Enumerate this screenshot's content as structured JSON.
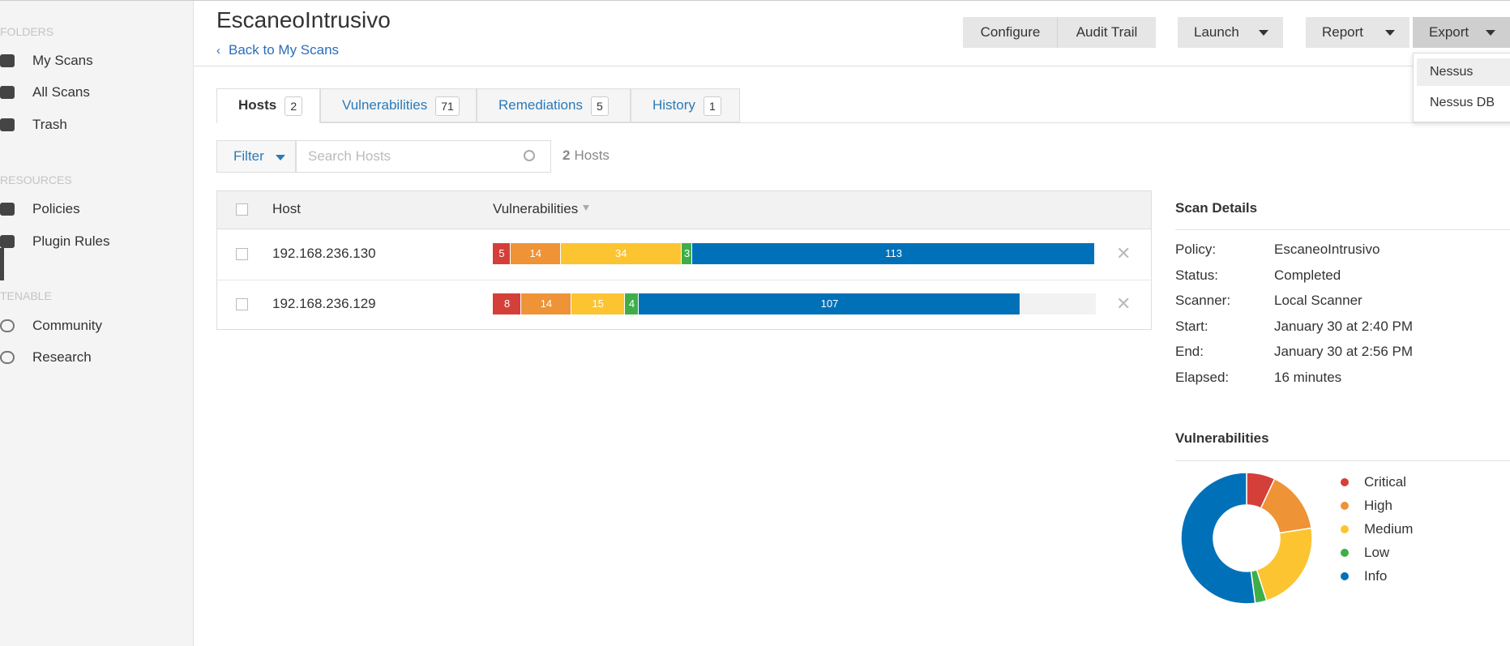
{
  "sidebar": {
    "sections": [
      {
        "title": "FOLDERS",
        "items": [
          "My Scans",
          "All Scans",
          "Trash"
        ]
      },
      {
        "title": "RESOURCES",
        "items": [
          "Policies",
          "Plugin Rules"
        ]
      },
      {
        "title": "TENABLE",
        "items": [
          "Community",
          "Research"
        ]
      }
    ]
  },
  "header": {
    "title": "EscaneoIntrusivo",
    "back": "Back to My Scans",
    "buttons": [
      "Configure",
      "Audit Trail",
      "Launch",
      "Report",
      "Export"
    ]
  },
  "export_menu": [
    "Nessus",
    "Nessus DB"
  ],
  "tabs": [
    {
      "label": "Hosts",
      "count": 2
    },
    {
      "label": "Vulnerabilities",
      "count": 71
    },
    {
      "label": "Remediations",
      "count": 5
    },
    {
      "label": "History",
      "count": 1
    }
  ],
  "filter": {
    "button": "Filter",
    "placeholder": "Search Hosts",
    "count": 2,
    "count_label": "Hosts"
  },
  "table": {
    "columns": [
      "Host",
      "Vulnerabilities"
    ],
    "rows": [
      {
        "host": "192.168.236.130",
        "counts": [
          5,
          14,
          34,
          3,
          113
        ]
      },
      {
        "host": "192.168.236.129",
        "counts": [
          8,
          14,
          15,
          4,
          107
        ]
      }
    ]
  },
  "scan_details": {
    "title": "Scan Details",
    "rows": [
      [
        "Policy:",
        "EscaneoIntrusivo"
      ],
      [
        "Status:",
        "Completed"
      ],
      [
        "Scanner:",
        "Local Scanner"
      ],
      [
        "Start:",
        "January 30 at 2:40 PM"
      ],
      [
        "End:",
        "January 30 at 2:56 PM"
      ],
      [
        "Elapsed:",
        "16 minutes"
      ]
    ]
  },
  "vulnerability_chart": {
    "type": "donut",
    "title": "Vulnerabilities",
    "categories": [
      "Critical",
      "High",
      "Medium",
      "Low",
      "Info"
    ],
    "colors": [
      "#d43f3a",
      "#ee9336",
      "#fdc431",
      "#3fae49",
      "#0071b9"
    ],
    "values": [
      5,
      11,
      16,
      2,
      37
    ]
  }
}
